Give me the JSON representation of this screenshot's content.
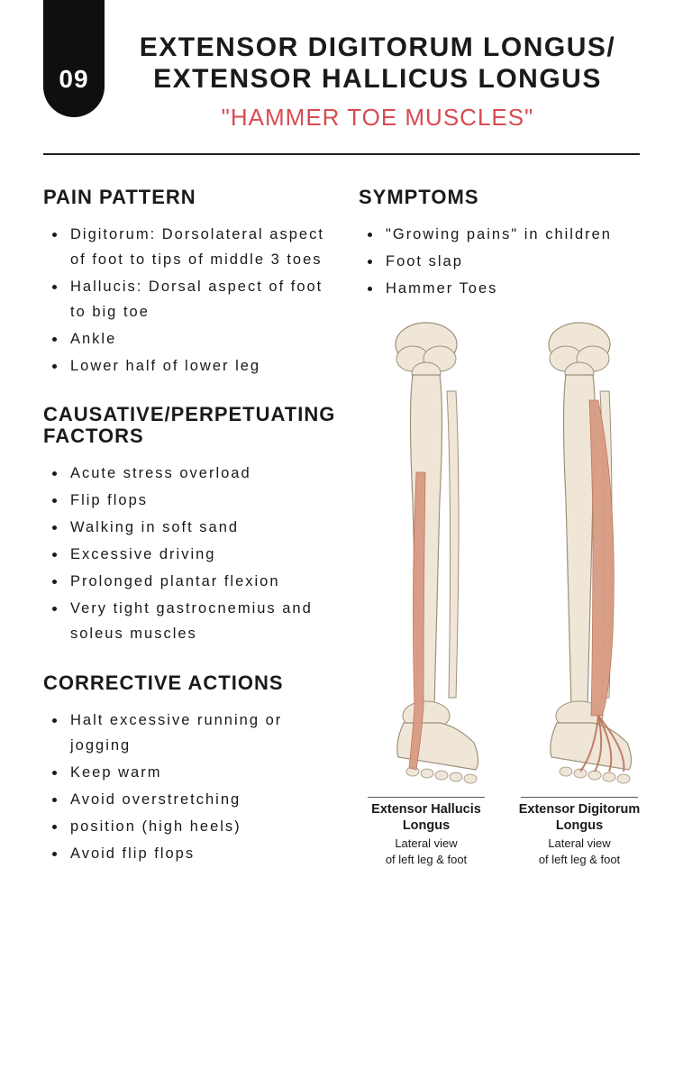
{
  "colors": {
    "text": "#1a1a1a",
    "badge_bg": "#0f0f0f",
    "badge_text": "#ffffff",
    "subtitle": "#d84b52",
    "divider": "#1e1e1e",
    "bone_fill": "#efe6d8",
    "bone_stroke": "#9e917b",
    "muscle_fill": "#d89b82",
    "muscle_stroke": "#b9745a"
  },
  "page": {
    "number": "09",
    "title": "EXTENSOR DIGITORUM LONGUS/ EXTENSOR HALLICUS LONGUS",
    "subtitle": "\"HAMMER TOE MUSCLES\""
  },
  "sections": {
    "pain_pattern": {
      "heading": "PAIN PATTERN",
      "items": [
        "Digitorum: Dorsolateral aspect of foot to tips of middle 3 toes",
        "Hallucis: Dorsal aspect of foot to big toe",
        "Ankle",
        "Lower half of lower leg"
      ]
    },
    "factors": {
      "heading": "CAUSATIVE/PERPETUATING FACTORS",
      "items": [
        "Acute stress overload",
        "Flip flops",
        "Walking in soft sand",
        "Excessive driving",
        "Prolonged plantar flexion",
        "Very tight gastrocnemius and soleus muscles"
      ]
    },
    "corrective": {
      "heading": "CORRECTIVE ACTIONS",
      "items": [
        "Halt excessive running or jogging",
        "Keep warm",
        "Avoid overstretching",
        "position (high heels)",
        "Avoid flip flops"
      ]
    },
    "symptoms": {
      "heading": "SYMPTOMS",
      "items": [
        "\"Growing pains\" in children",
        "Foot slap",
        "Hammer Toes"
      ]
    }
  },
  "diagrams": {
    "left": {
      "title": "Extensor Hallucis Longus",
      "subtitle": "Lateral view\nof left leg & foot",
      "muscle_side": "medial"
    },
    "right": {
      "title": "Extensor Digitorum Longus",
      "subtitle": "Lateral view\nof left leg & foot",
      "muscle_side": "lateral"
    }
  }
}
